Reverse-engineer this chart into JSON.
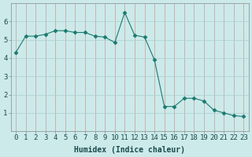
{
  "x": [
    0,
    1,
    2,
    3,
    4,
    5,
    6,
    7,
    8,
    9,
    10,
    11,
    12,
    13,
    14,
    15,
    16,
    17,
    18,
    19,
    20,
    21,
    22,
    23
  ],
  "y": [
    4.3,
    5.2,
    5.2,
    5.3,
    5.5,
    5.5,
    5.4,
    5.4,
    5.2,
    5.15,
    4.85,
    6.5,
    5.25,
    5.15,
    3.9,
    1.35,
    1.35,
    1.8,
    1.8,
    1.65,
    1.15,
    1.0,
    0.85,
    0.8
  ],
  "line_color": "#1a7a6e",
  "marker": "D",
  "marker_size": 2.5,
  "bg_color": "#cceaea",
  "grid_color": "#aacece",
  "xlabel": "Humidex (Indice chaleur)",
  "xlim": [
    -0.5,
    23.5
  ],
  "ylim": [
    0,
    7
  ],
  "yticks": [
    1,
    2,
    3,
    4,
    5,
    6
  ],
  "xticks": [
    0,
    1,
    2,
    3,
    4,
    5,
    6,
    7,
    8,
    9,
    10,
    11,
    12,
    13,
    14,
    15,
    16,
    17,
    18,
    19,
    20,
    21,
    22,
    23
  ],
  "xlabel_fontsize": 7,
  "tick_fontsize": 6.5
}
